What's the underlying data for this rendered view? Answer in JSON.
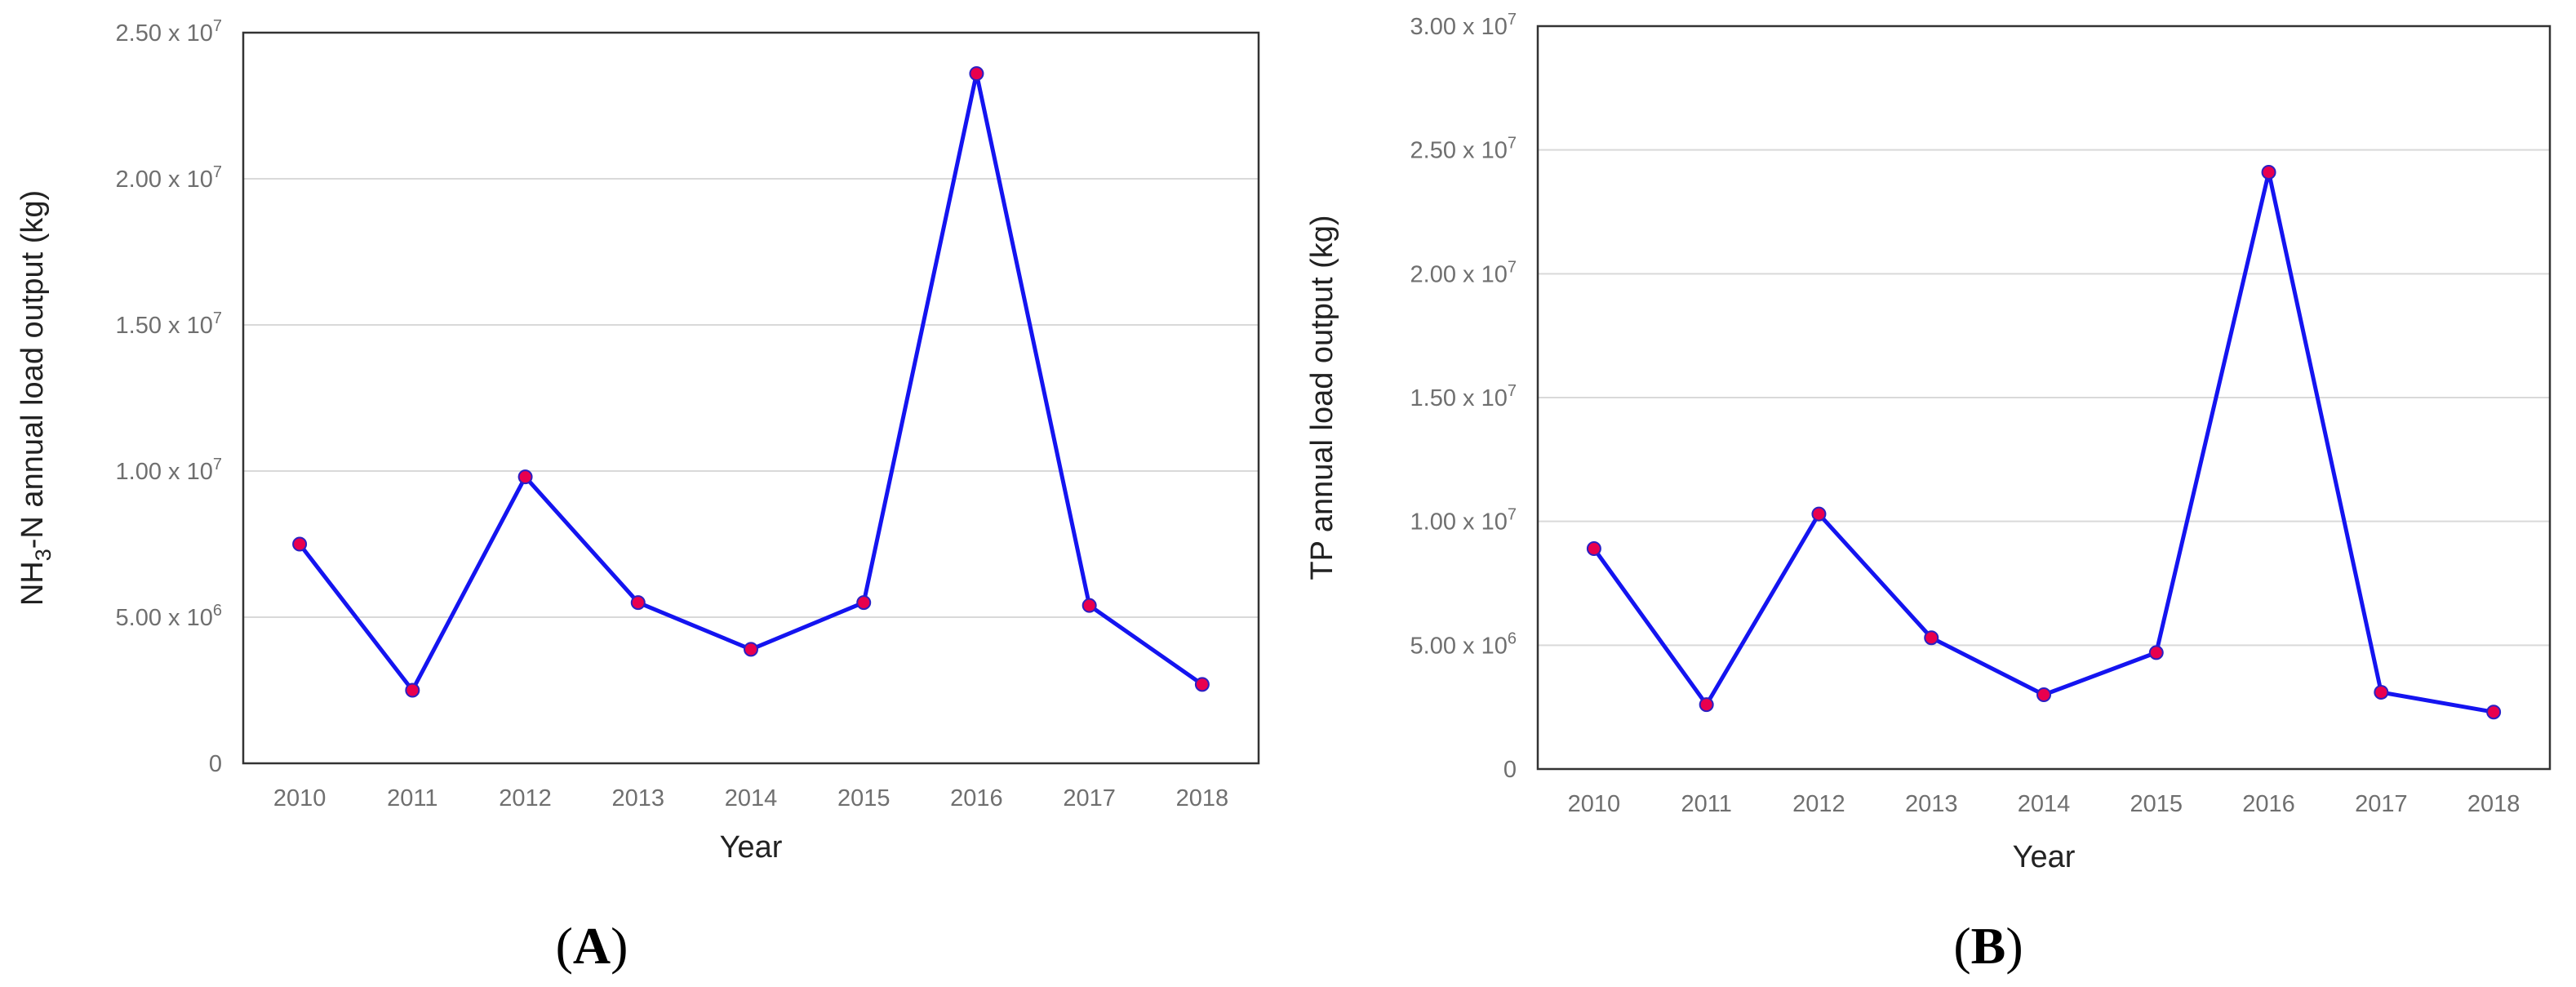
{
  "chart_data": [
    {
      "type": "line",
      "panel_label": "A",
      "xlabel": "Year",
      "ylabel": "NH3-N annual load output (kg)",
      "ylabel_parts": {
        "pre": "NH",
        "sub": "3",
        "post": "-N annual load output (kg)"
      },
      "categories": [
        "2010",
        "2011",
        "2012",
        "2013",
        "2014",
        "2015",
        "2016",
        "2017",
        "2018"
      ],
      "series": [
        {
          "values": [
            7500000,
            2500000,
            9800000,
            5500000,
            3900000,
            5500000,
            23600000,
            5400000,
            2700000
          ]
        }
      ],
      "ylim": [
        0,
        25000000
      ],
      "yticks": [
        {
          "value": 0,
          "mant": "0",
          "exp": ""
        },
        {
          "value": 5000000,
          "mant": "5.00 x 10",
          "exp": "6"
        },
        {
          "value": 10000000,
          "mant": "1.00 x 10",
          "exp": "7"
        },
        {
          "value": 15000000,
          "mant": "1.50 x 10",
          "exp": "7"
        },
        {
          "value": 20000000,
          "mant": "2.00 x 10",
          "exp": "7"
        },
        {
          "value": 25000000,
          "mant": "2.50 x 10",
          "exp": "7"
        }
      ],
      "grid": true,
      "colors": {
        "line": "#1414f0",
        "marker": "#e8004e",
        "marker_edge": "#2a1fc4",
        "grid": "#d9d9d9",
        "frame": "#333333"
      }
    },
    {
      "type": "line",
      "panel_label": "B",
      "xlabel": "Year",
      "ylabel": "TP annual load output (kg)",
      "categories": [
        "2010",
        "2011",
        "2012",
        "2013",
        "2014",
        "2015",
        "2016",
        "2017",
        "2018"
      ],
      "series": [
        {
          "values": [
            8900000,
            2600000,
            10300000,
            5300000,
            3000000,
            4700000,
            24100000,
            3100000,
            2300000
          ]
        }
      ],
      "ylim": [
        0,
        30000000
      ],
      "yticks": [
        {
          "value": 0,
          "mant": "0",
          "exp": ""
        },
        {
          "value": 5000000,
          "mant": "5.00 x 10",
          "exp": "6"
        },
        {
          "value": 10000000,
          "mant": "1.00 x 10",
          "exp": "7"
        },
        {
          "value": 15000000,
          "mant": "1.50 x 10",
          "exp": "7"
        },
        {
          "value": 20000000,
          "mant": "2.00 x 10",
          "exp": "7"
        },
        {
          "value": 25000000,
          "mant": "2.50 x 10",
          "exp": "7"
        },
        {
          "value": 30000000,
          "mant": "3.00 x 10",
          "exp": "7"
        }
      ],
      "grid": true,
      "colors": {
        "line": "#1414f0",
        "marker": "#e8004e",
        "marker_edge": "#2a1fc4",
        "grid": "#d9d9d9",
        "frame": "#333333"
      }
    }
  ]
}
